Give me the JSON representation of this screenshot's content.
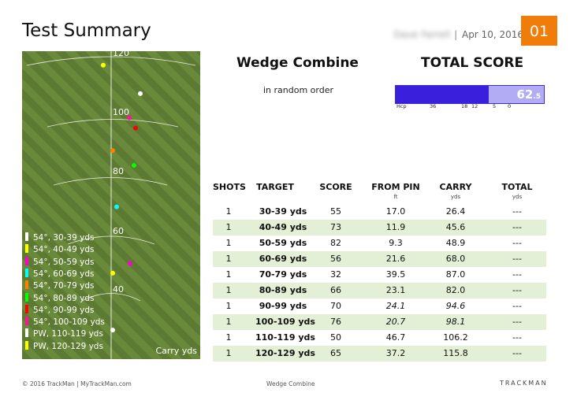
{
  "header": {
    "title": "Test Summary",
    "player_name": "Dave Farrell",
    "separator": "|",
    "date": "Apr 10, 2016",
    "page_number": "01",
    "accent_color": "#f07d0a"
  },
  "field": {
    "distance_labels": [
      "120",
      "100",
      "80",
      "60",
      "40"
    ],
    "carry_label": "Carry yds",
    "legend": [
      {
        "label": "54°, 30-39 yds",
        "color": "#ffffff"
      },
      {
        "label": "54°, 40-49 yds",
        "color": "#ffff00"
      },
      {
        "label": "54°, 50-59 yds",
        "color": "#ff00cc"
      },
      {
        "label": "54°, 60-69 yds",
        "color": "#00ffff"
      },
      {
        "label": "54°, 70-79 yds",
        "color": "#ff7f00"
      },
      {
        "label": "54°, 80-89 yds",
        "color": "#00ff00"
      },
      {
        "label": "54°, 90-99 yds",
        "color": "#ff0000"
      },
      {
        "label": "54°, 100-109 yds",
        "color": "#ff1493"
      },
      {
        "label": "PW, 110-119 yds",
        "color": "#ffffff"
      },
      {
        "label": "PW, 120-129 yds",
        "color": "#ffff00"
      }
    ]
  },
  "test": {
    "name": "Wedge Combine",
    "subtitle": "in random order",
    "total_score_title": "TOTAL SCORE",
    "total_score_int": "62",
    "total_score_dec": ".5",
    "total_score_fraction": 0.625,
    "hcp_label": "Hcp",
    "hcp_ticks": [
      "36",
      "18",
      "12",
      "5",
      "0"
    ]
  },
  "results": {
    "headers": {
      "shots": "SHOTS",
      "target": "TARGET",
      "score": "SCORE",
      "from_pin": "FROM PIN",
      "carry": "CARRY",
      "total": "TOTAL"
    },
    "units": {
      "from_pin": "ft",
      "carry": "yds",
      "total": "yds"
    },
    "rows": [
      {
        "shots": "1",
        "target": "30-39 yds",
        "score": "55",
        "from_pin": "17.0",
        "carry": "26.4",
        "total": "---"
      },
      {
        "shots": "1",
        "target": "40-49 yds",
        "score": "73",
        "from_pin": "11.9",
        "carry": "45.6",
        "total": "---"
      },
      {
        "shots": "1",
        "target": "50-59 yds",
        "score": "82",
        "from_pin": "9.3",
        "carry": "48.9",
        "total": "---"
      },
      {
        "shots": "1",
        "target": "60-69 yds",
        "score": "56",
        "from_pin": "21.6",
        "carry": "68.0",
        "total": "---"
      },
      {
        "shots": "1",
        "target": "70-79 yds",
        "score": "32",
        "from_pin": "39.5",
        "carry": "87.0",
        "total": "---"
      },
      {
        "shots": "1",
        "target": "80-89 yds",
        "score": "66",
        "from_pin": "23.1",
        "carry": "82.0",
        "total": "---"
      },
      {
        "shots": "1",
        "target": "90-99 yds",
        "score": "70",
        "from_pin": "24.1",
        "carry": "94.6",
        "total": "---",
        "italic": true
      },
      {
        "shots": "1",
        "target": "100-109 yds",
        "score": "76",
        "from_pin": "20.7",
        "carry": "98.1",
        "total": "---",
        "italic": true
      },
      {
        "shots": "1",
        "target": "110-119 yds",
        "score": "50",
        "from_pin": "46.7",
        "carry": "106.2",
        "total": "---"
      },
      {
        "shots": "1",
        "target": "120-129 yds",
        "score": "65",
        "from_pin": "37.2",
        "carry": "115.8",
        "total": "---"
      }
    ]
  },
  "footer": {
    "left": "© 2016 TrackMan | MyTrackMan.com",
    "center": "Wedge Combine",
    "brand": "TRACKMAN"
  }
}
